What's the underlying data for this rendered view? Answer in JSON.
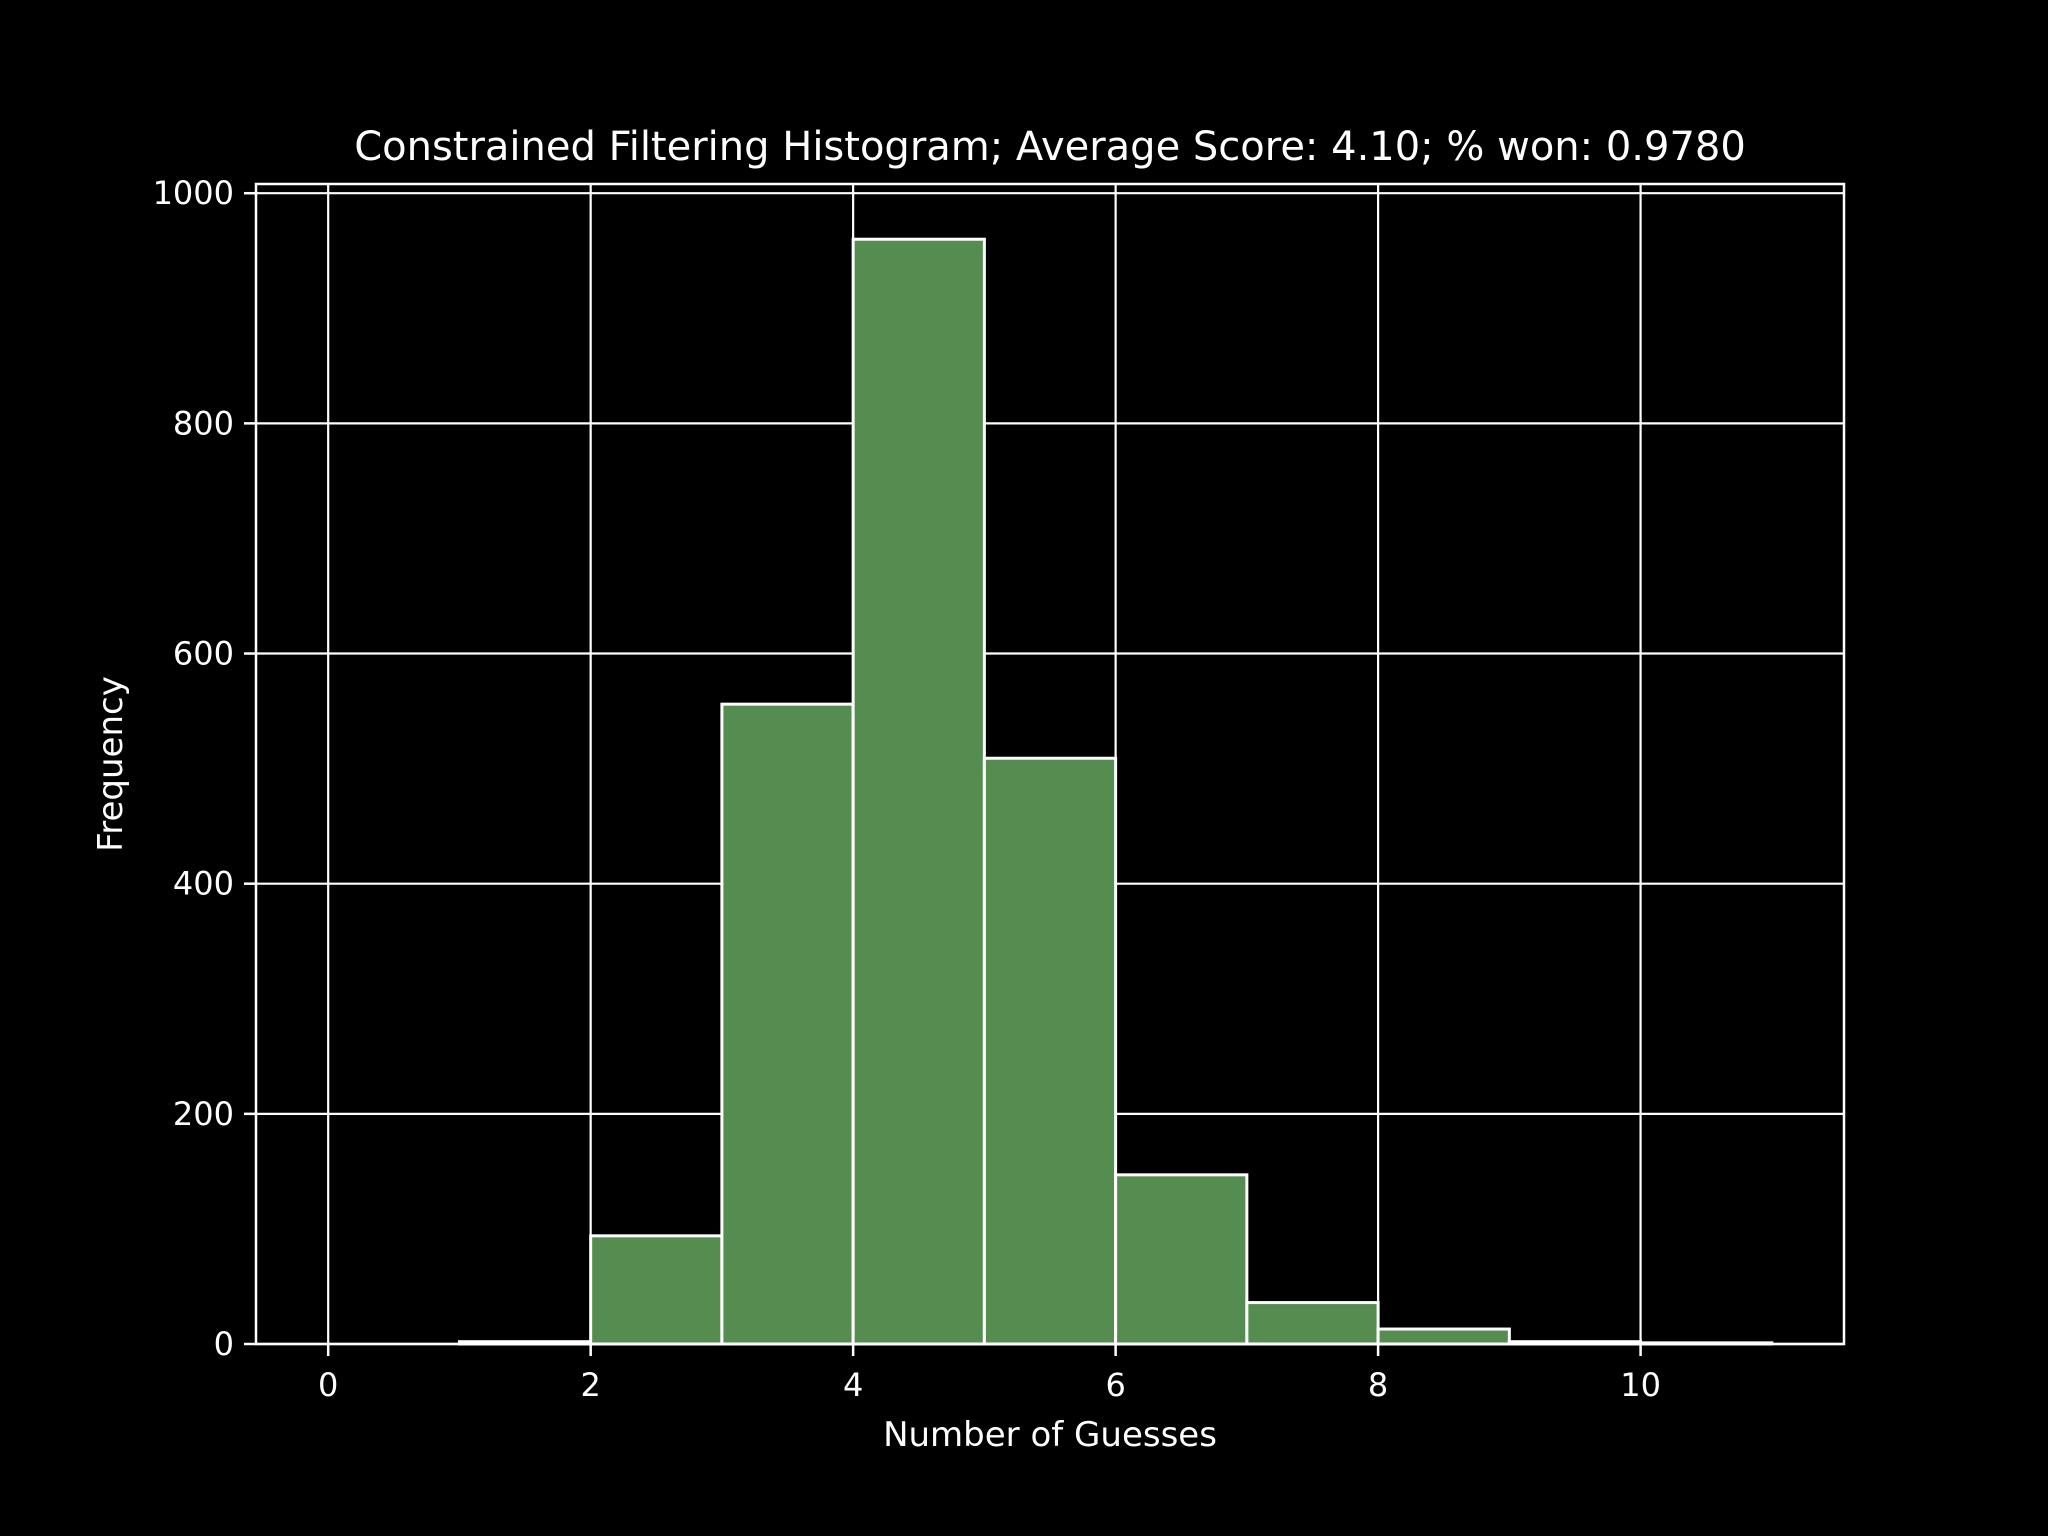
{
  "chart_data": {
    "type": "bar",
    "title": "Constrained Filtering Histogram; Average Score: 4.10; % won: 0.9780",
    "xlabel": "Number of Guesses",
    "ylabel": "Frequency",
    "xlim": [
      -0.55,
      11.55
    ],
    "ylim": [
      0,
      1008
    ],
    "xticks": [
      0,
      2,
      4,
      6,
      8,
      10
    ],
    "xtick_labels": [
      "0",
      "2",
      "4",
      "6",
      "8",
      "10"
    ],
    "yticks": [
      0,
      200,
      400,
      600,
      800,
      1000
    ],
    "ytick_labels": [
      "0",
      "200",
      "400",
      "600",
      "800",
      "1000"
    ],
    "grid": true,
    "bins": [
      {
        "x0": 0,
        "x1": 1,
        "value": 0
      },
      {
        "x0": 1,
        "x1": 2,
        "value": 2
      },
      {
        "x0": 2,
        "x1": 3,
        "value": 94
      },
      {
        "x0": 3,
        "x1": 4,
        "value": 556
      },
      {
        "x0": 4,
        "x1": 5,
        "value": 960
      },
      {
        "x0": 5,
        "x1": 6,
        "value": 509
      },
      {
        "x0": 6,
        "x1": 7,
        "value": 147
      },
      {
        "x0": 7,
        "x1": 8,
        "value": 36
      },
      {
        "x0": 8,
        "x1": 9,
        "value": 13
      },
      {
        "x0": 9,
        "x1": 10,
        "value": 2
      },
      {
        "x0": 10,
        "x1": 11,
        "value": 1
      }
    ],
    "colors": {
      "background": "#000000",
      "bar_fill": "#548d4f",
      "bar_edge": "#ffffff",
      "grid": "#ffffff",
      "text": "#ffffff"
    }
  }
}
